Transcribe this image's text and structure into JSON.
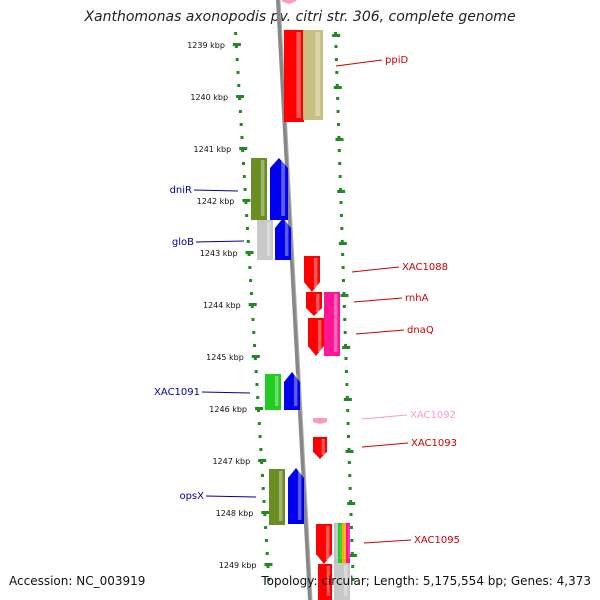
{
  "title": "Xanthomonas axonopodis pv. citri str. 306, complete genome",
  "accession": "Accession: NC_003919",
  "summary": "Topology: circular; Length: 5,175,554 bp; Genes: 4,373",
  "scale_ticks": [
    "1239 kbp",
    "1240 kbp",
    "1241 kbp",
    "1242 kbp",
    "1243 kbp",
    "1244 kbp",
    "1245 kbp",
    "1246 kbp",
    "1247 kbp",
    "1248 kbp",
    "1249 kbp"
  ],
  "genes_left": [
    {
      "name": "dniR",
      "color": "#000099"
    },
    {
      "name": "gloB",
      "color": "#000099"
    },
    {
      "name": "XAC1091",
      "color": "#000099"
    },
    {
      "name": "opsX",
      "color": "#000099"
    }
  ],
  "genes_right": [
    {
      "name": "ppiD",
      "color": "#cc0000"
    },
    {
      "name": "XAC1088",
      "color": "#cc0000"
    },
    {
      "name": "rnhA",
      "color": "#cc0000"
    },
    {
      "name": "dnaQ",
      "color": "#cc0000"
    },
    {
      "name": "XAC1092",
      "color": "#ff99cc"
    },
    {
      "name": "XAC1093",
      "color": "#cc0000"
    },
    {
      "name": "XAC1095",
      "color": "#cc0000"
    }
  ],
  "colors": {
    "backbone": "#888888",
    "dots": "#228822",
    "red": "#ff0000",
    "blue": "#0000ee",
    "olive": "#6b8e23",
    "khaki": "#c8c080",
    "magenta": "#ff1493",
    "green": "#22cc22",
    "gray": "#c8c8c8",
    "pink": "#ff99bb"
  }
}
